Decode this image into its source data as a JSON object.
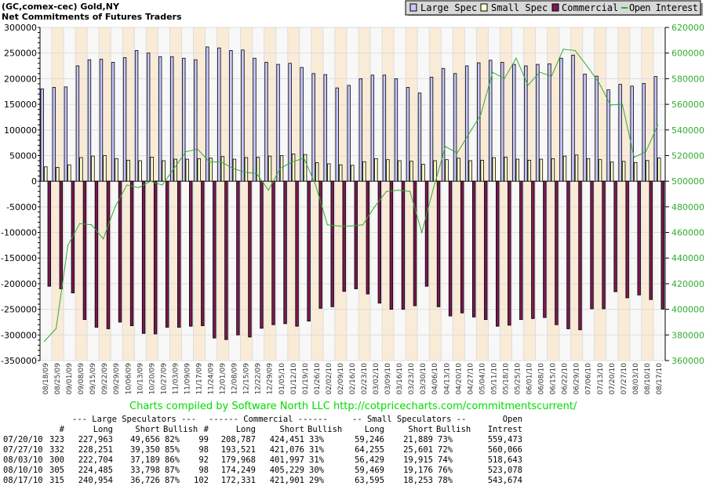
{
  "chart_data": {
    "type": "bar",
    "title": "(GC,comex-cec) Gold,NY",
    "subtitle": "Net Commitments of Futures Traders",
    "categories": [
      "08/18/09",
      "08/25/09",
      "09/01/09",
      "09/08/09",
      "09/15/09",
      "09/22/09",
      "09/29/09",
      "10/06/09",
      "10/13/09",
      "10/20/09",
      "10/27/09",
      "11/03/09",
      "11/09/09",
      "11/17/09",
      "11/24/09",
      "12/01/09",
      "12/08/09",
      "12/15/09",
      "12/22/09",
      "12/29/09",
      "01/05/10",
      "01/12/10",
      "01/19/10",
      "01/26/10",
      "02/02/10",
      "02/09/10",
      "02/16/10",
      "02/23/10",
      "03/02/10",
      "03/09/10",
      "03/16/10",
      "03/23/10",
      "03/30/10",
      "04/06/10",
      "04/13/10",
      "04/20/10",
      "04/27/10",
      "05/04/10",
      "05/11/10",
      "05/18/10",
      "05/25/10",
      "06/01/10",
      "06/08/10",
      "06/15/10",
      "06/22/10",
      "06/29/10",
      "07/06/10",
      "07/13/10",
      "07/20/10",
      "07/27/10",
      "08/03/10",
      "08/10/10",
      "08/17/10"
    ],
    "series": [
      {
        "name": "Large Spec",
        "axis": "left",
        "color": "#c8c8ff",
        "values": [
          180000,
          183000,
          184000,
          225000,
          237000,
          238000,
          232000,
          241000,
          255000,
          250000,
          243000,
          243000,
          240000,
          237000,
          262000,
          260000,
          255000,
          256000,
          240000,
          232000,
          228000,
          230000,
          222000,
          210000,
          208000,
          182000,
          187000,
          200000,
          207000,
          207000,
          200000,
          183000,
          172000,
          203000,
          220000,
          210000,
          225000,
          231000,
          236000,
          232000,
          228000,
          225000,
          228000,
          229000,
          240000,
          246000,
          209000,
          205000,
          178307,
          188901,
          185515,
          190687,
          204228
        ]
      },
      {
        "name": "Small Spec",
        "axis": "left",
        "color": "#ffffcc",
        "values": [
          28000,
          27000,
          32000,
          46000,
          49000,
          50000,
          44000,
          41000,
          40000,
          47000,
          40000,
          43000,
          43000,
          44000,
          45000,
          48000,
          43000,
          46000,
          47000,
          49000,
          50000,
          53000,
          52000,
          36000,
          34000,
          32000,
          31000,
          38000,
          44000,
          42000,
          40000,
          39000,
          33000,
          40000,
          42000,
          45000,
          40000,
          41000,
          46000,
          47000,
          43000,
          41000,
          43000,
          44000,
          49000,
          51000,
          44000,
          42000,
          37357,
          38654,
          36514,
          40293,
          45342
        ]
      },
      {
        "name": "Commercial",
        "axis": "left",
        "color": "#7a1a50",
        "values": [
          -205000,
          -210000,
          -218000,
          -270000,
          -285000,
          -288000,
          -275000,
          -282000,
          -297000,
          -298000,
          -285000,
          -285000,
          -283000,
          -282000,
          -306000,
          -309000,
          -300000,
          -304000,
          -287000,
          -280000,
          -278000,
          -283000,
          -273000,
          -248000,
          -245000,
          -215000,
          -210000,
          -220000,
          -238000,
          -250000,
          -250000,
          -243000,
          -205000,
          -245000,
          -263000,
          -257000,
          -265000,
          -270000,
          -283000,
          -281000,
          -270000,
          -268000,
          -266000,
          -280000,
          -288000,
          -290000,
          -249000,
          -249000,
          -215664,
          -227555,
          -222029,
          -230980,
          -249570
        ]
      },
      {
        "name": "Open Interest",
        "axis": "right",
        "type": "line",
        "color": "#33aa33",
        "values": [
          375000,
          385000,
          450000,
          467000,
          466000,
          455000,
          480000,
          497000,
          495000,
          500000,
          497000,
          510000,
          523000,
          525000,
          515000,
          515000,
          510000,
          507000,
          506000,
          493000,
          510000,
          515000,
          518000,
          497000,
          466000,
          465000,
          465000,
          466000,
          480000,
          492000,
          493000,
          492000,
          460000,
          495000,
          527000,
          522000,
          537000,
          552000,
          585000,
          580000,
          596000,
          575000,
          585000,
          582000,
          603000,
          602000,
          590000,
          577000,
          559473,
          560066,
          518643,
          523078,
          543674
        ]
      }
    ],
    "ylim": [
      -350000,
      300000
    ],
    "yticks": [
      "300000",
      "250000",
      "200000",
      "150000",
      "100000",
      "50000",
      "0",
      "-50000",
      "-100000",
      "-150000",
      "-200000",
      "-250000",
      "-300000",
      "-350000"
    ],
    "y2lim": [
      360000,
      620000
    ],
    "y2ticks": [
      "620000",
      "600000",
      "580000",
      "560000",
      "540000",
      "520000",
      "500000",
      "480000",
      "460000",
      "440000",
      "420000",
      "400000",
      "380000",
      "360000"
    ],
    "legend_position": "top-right",
    "grid": true
  },
  "credit": "Charts compiled by Software North LLC  http://cotpricecharts.com/commitmentscurrent/",
  "table": {
    "group_headers": {
      "large": "--- Large Speculators ---",
      "commercial": "------ Commercial ------",
      "small": "-- Small Speculators --",
      "open": "Open"
    },
    "col_headers": {
      "num": "#",
      "long": "Long",
      "short": "Short",
      "bullish": "Bullish",
      "num2": "#",
      "long2": "Long",
      "short2": "Short",
      "bullish2": "Bullish",
      "long3": "Long",
      "short3": "Short",
      "bullish3": "Bullish",
      "oi": "Intrest"
    },
    "rows": [
      {
        "date": "07/20/10",
        "ls_n": "323",
        "ls_long": "227,963",
        "ls_short": "49,656",
        "ls_bull": "82%",
        "c_n": "99",
        "c_long": "208,787",
        "c_short": "424,451",
        "c_bull": "33%",
        "ss_long": "59,246",
        "ss_short": "21,889",
        "ss_bull": "73%",
        "oi": "559,473"
      },
      {
        "date": "07/27/10",
        "ls_n": "332",
        "ls_long": "228,251",
        "ls_short": "39,350",
        "ls_bull": "85%",
        "c_n": "98",
        "c_long": "193,521",
        "c_short": "421,076",
        "c_bull": "31%",
        "ss_long": "64,255",
        "ss_short": "25,601",
        "ss_bull": "72%",
        "oi": "560,066"
      },
      {
        "date": "08/03/10",
        "ls_n": "300",
        "ls_long": "222,704",
        "ls_short": "37,189",
        "ls_bull": "86%",
        "c_n": "92",
        "c_long": "179,968",
        "c_short": "401,997",
        "c_bull": "31%",
        "ss_long": "56,429",
        "ss_short": "19,915",
        "ss_bull": "74%",
        "oi": "518,643"
      },
      {
        "date": "08/10/10",
        "ls_n": "305",
        "ls_long": "224,485",
        "ls_short": "33,798",
        "ls_bull": "87%",
        "c_n": "98",
        "c_long": "174,249",
        "c_short": "405,229",
        "c_bull": "30%",
        "ss_long": "59,469",
        "ss_short": "19,176",
        "ss_bull": "76%",
        "oi": "523,078"
      },
      {
        "date": "08/17/10",
        "ls_n": "315",
        "ls_long": "240,954",
        "ls_short": "36,726",
        "ls_bull": "87%",
        "c_n": "102",
        "c_long": "172,331",
        "c_short": "421,901",
        "c_bull": "29%",
        "ss_long": "63,595",
        "ss_short": "18,253",
        "ss_bull": "78%",
        "oi": "543,674"
      }
    ]
  }
}
